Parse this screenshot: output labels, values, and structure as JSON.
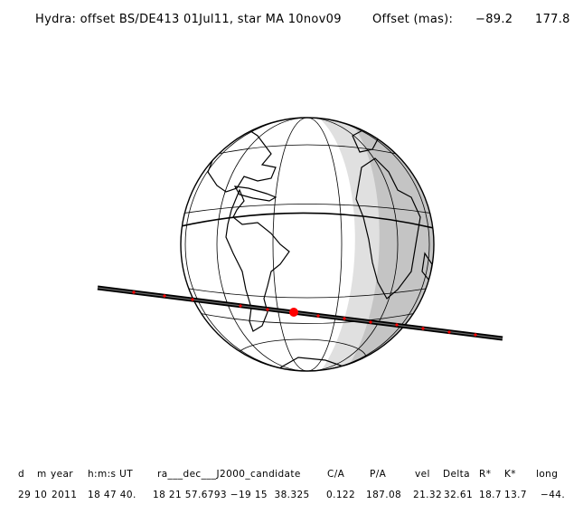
{
  "title": {
    "label": "Hydra: offset BS/DE413 01Jul11, star MA 10nov09",
    "offset_label": "Offset (mas):",
    "offset_x": "−89.2",
    "offset_y": "177.8"
  },
  "table": {
    "headers": [
      "d",
      "m",
      "year",
      "h:m:s UT",
      "ra___dec___J2000_candidate",
      "C/A",
      "P/A",
      "vel",
      "Delta",
      "R*",
      "K*",
      "long"
    ],
    "values": [
      "29",
      "10",
      "2011",
      "18 47 40.",
      "18 21 57.6793 −19 15  38.325",
      "0.122",
      "187.08",
      "21.32",
      "32.61",
      "18.7",
      "13.7",
      "−44."
    ]
  },
  "colors": {
    "background": "#ffffff",
    "outline": "#000000",
    "penumbra": "#e0e0e0",
    "night": "#c4c4c4",
    "track": "#000000",
    "track_markers": "#ff0000",
    "central_point": "#ff0000"
  }
}
